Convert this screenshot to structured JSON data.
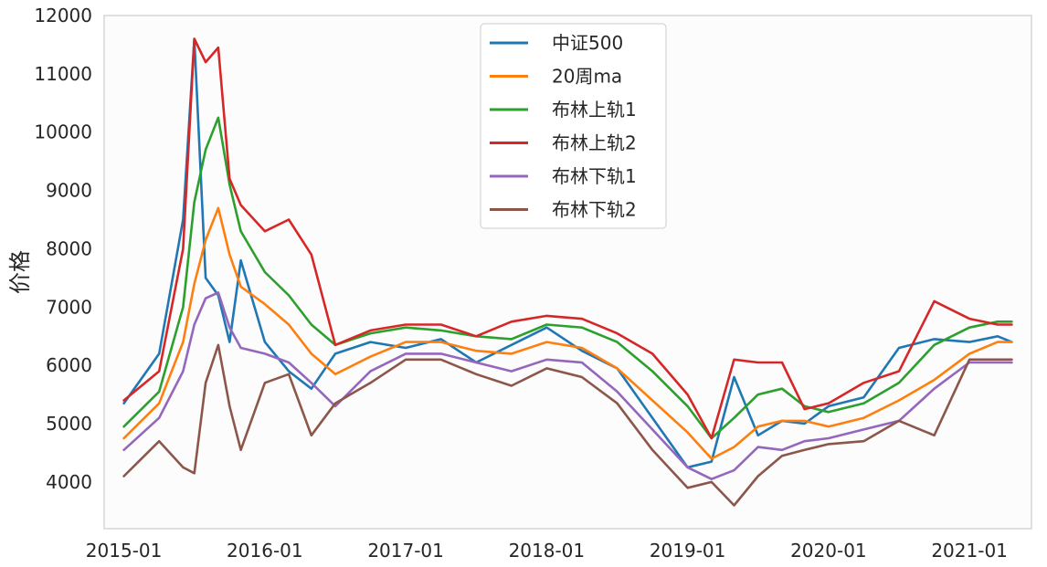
{
  "chart_data": {
    "type": "line",
    "title": "",
    "xlabel": "",
    "ylabel": "价格",
    "ylim": [
      3200,
      12000
    ],
    "yticks": [
      4000,
      5000,
      6000,
      7000,
      8000,
      9000,
      10000,
      11000,
      12000
    ],
    "xlim": [
      2014.86,
      2021.44
    ],
    "xticks": [
      {
        "value": 2015.0,
        "label": "2015-01"
      },
      {
        "value": 2016.0,
        "label": "2016-01"
      },
      {
        "value": 2017.0,
        "label": "2017-01"
      },
      {
        "value": 2018.0,
        "label": "2018-01"
      },
      {
        "value": 2019.0,
        "label": "2019-01"
      },
      {
        "value": 2020.0,
        "label": "2020-01"
      },
      {
        "value": 2021.0,
        "label": "2021-01"
      }
    ],
    "grid": false,
    "legend_position": "top-center",
    "x": [
      2015.0,
      2015.25,
      2015.42,
      2015.5,
      2015.58,
      2015.67,
      2015.75,
      2015.83,
      2016.0,
      2016.17,
      2016.33,
      2016.5,
      2016.75,
      2017.0,
      2017.25,
      2017.5,
      2017.75,
      2018.0,
      2018.25,
      2018.5,
      2018.75,
      2019.0,
      2019.17,
      2019.33,
      2019.5,
      2019.67,
      2019.83,
      2020.0,
      2020.25,
      2020.5,
      2020.75,
      2021.0,
      2021.2,
      2021.3
    ],
    "series": [
      {
        "name": "中证500",
        "color": "#1f77b4",
        "values": [
          5350,
          6200,
          8500,
          11600,
          7500,
          7200,
          6400,
          7800,
          6400,
          5900,
          5600,
          6200,
          6400,
          6300,
          6450,
          6050,
          6350,
          6650,
          6250,
          5950,
          5100,
          4250,
          4350,
          5800,
          4800,
          5050,
          5000,
          5300,
          5450,
          6300,
          6450,
          6400,
          6500,
          6400
        ]
      },
      {
        "name": "20周ma",
        "color": "#ff7f0e",
        "values": [
          4750,
          5350,
          6400,
          7400,
          8150,
          8700,
          7900,
          7350,
          7050,
          6700,
          6200,
          5850,
          6150,
          6400,
          6400,
          6250,
          6200,
          6400,
          6300,
          5950,
          5400,
          4850,
          4400,
          4600,
          4950,
          5050,
          5050,
          4950,
          5100,
          5400,
          5750,
          6200,
          6400,
          6400
        ]
      },
      {
        "name": "布林上轨1",
        "color": "#2ca02c",
        "values": [
          4950,
          5550,
          7000,
          8800,
          9700,
          10250,
          9100,
          8300,
          7600,
          7200,
          6700,
          6350,
          6550,
          6650,
          6600,
          6500,
          6450,
          6700,
          6650,
          6400,
          5900,
          5300,
          4750,
          5100,
          5500,
          5600,
          5300,
          5200,
          5350,
          5700,
          6350,
          6650,
          6750,
          6750
        ]
      },
      {
        "name": "布林上轨2",
        "color": "#d62728",
        "values": [
          5400,
          5900,
          8000,
          11600,
          11200,
          11450,
          9200,
          8750,
          8300,
          8500,
          7900,
          6350,
          6600,
          6700,
          6700,
          6500,
          6750,
          6850,
          6800,
          6550,
          6200,
          5500,
          4750,
          6100,
          6050,
          6050,
          5250,
          5350,
          5700,
          5900,
          7100,
          6800,
          6700,
          6700
        ]
      },
      {
        "name": "布林下轨1",
        "color": "#9467bd",
        "values": [
          4550,
          5100,
          5900,
          6700,
          7150,
          7250,
          6650,
          6300,
          6200,
          6050,
          5700,
          5300,
          5900,
          6200,
          6200,
          6050,
          5900,
          6100,
          6050,
          5550,
          4900,
          4250,
          4050,
          4200,
          4600,
          4550,
          4700,
          4750,
          4900,
          5050,
          5600,
          6050,
          6050,
          6050
        ]
      },
      {
        "name": "布林下轨2",
        "color": "#8c564b",
        "values": [
          4100,
          4700,
          4250,
          4150,
          5700,
          6350,
          5300,
          4550,
          5700,
          5850,
          4800,
          5350,
          5700,
          6100,
          6100,
          5850,
          5650,
          5950,
          5800,
          5350,
          4550,
          3900,
          4000,
          3600,
          4100,
          4450,
          4550,
          4650,
          4700,
          5050,
          4800,
          6100,
          6100,
          6100
        ]
      }
    ]
  }
}
